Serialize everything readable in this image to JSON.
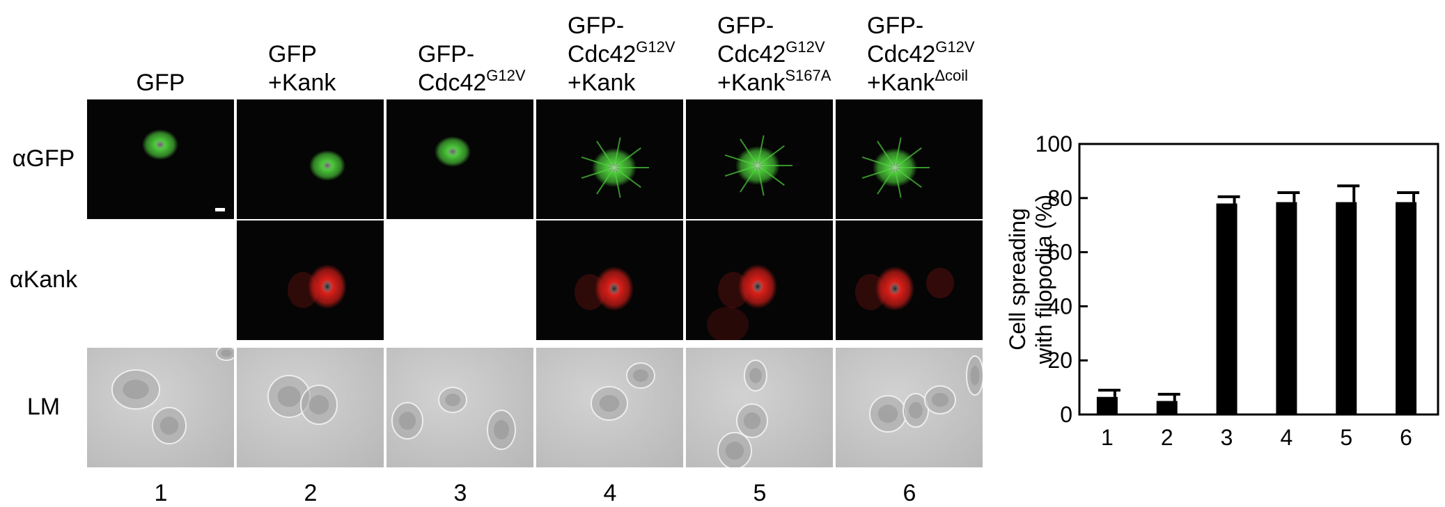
{
  "columns": [
    {
      "lines": [
        {
          "text": "GFP",
          "sup": ""
        }
      ]
    },
    {
      "lines": [
        {
          "text": "GFP",
          "sup": ""
        },
        {
          "text": "+Kank",
          "sup": ""
        }
      ]
    },
    {
      "lines": [
        {
          "text": "GFP-",
          "sup": ""
        },
        {
          "text": "Cdc42",
          "sup": "G12V"
        }
      ]
    },
    {
      "lines": [
        {
          "text": "GFP-",
          "sup": ""
        },
        {
          "text": "Cdc42",
          "sup": "G12V"
        },
        {
          "text": "+Kank",
          "sup": ""
        }
      ]
    },
    {
      "lines": [
        {
          "text": "GFP-",
          "sup": ""
        },
        {
          "text": "Cdc42",
          "sup": "G12V"
        },
        {
          "text": "+Kank",
          "sup": "S167A"
        }
      ]
    },
    {
      "lines": [
        {
          "text": "GFP-",
          "sup": ""
        },
        {
          "text": "Cdc42",
          "sup": "G12V"
        },
        {
          "text": "+Kank",
          "sup": "Δcoil"
        }
      ]
    }
  ],
  "rows": [
    {
      "label": "αGFP",
      "kind": "green",
      "present": [
        true,
        true,
        true,
        true,
        true,
        true
      ]
    },
    {
      "label": "αKank",
      "kind": "red",
      "present": [
        false,
        true,
        false,
        true,
        true,
        true
      ]
    },
    {
      "label": "LM",
      "kind": "lm",
      "present": [
        true,
        true,
        true,
        true,
        true,
        true
      ]
    }
  ],
  "lane_numbers": [
    "1",
    "2",
    "3",
    "4",
    "5",
    "6"
  ],
  "colors": {
    "green": "#4fd23c",
    "red": "#e8201a",
    "bar": "#000000"
  },
  "chart_data": {
    "type": "bar",
    "categories": [
      "1",
      "2",
      "3",
      "4",
      "5",
      "6"
    ],
    "values": [
      6.5,
      5,
      78,
      78.5,
      78.5,
      78.5
    ],
    "errors": [
      2.5,
      2.5,
      2.5,
      3.5,
      6,
      3.5
    ],
    "title": "",
    "xlabel": "",
    "ylabel": "Cell spreading with filopodia (%)",
    "ylabel_lines": [
      "Cell spreading",
      "with filopodia (%)"
    ],
    "ylim": [
      0,
      100
    ],
    "yticks": [
      "0",
      "20",
      "40",
      "60",
      "80",
      "100"
    ],
    "grid": false
  }
}
